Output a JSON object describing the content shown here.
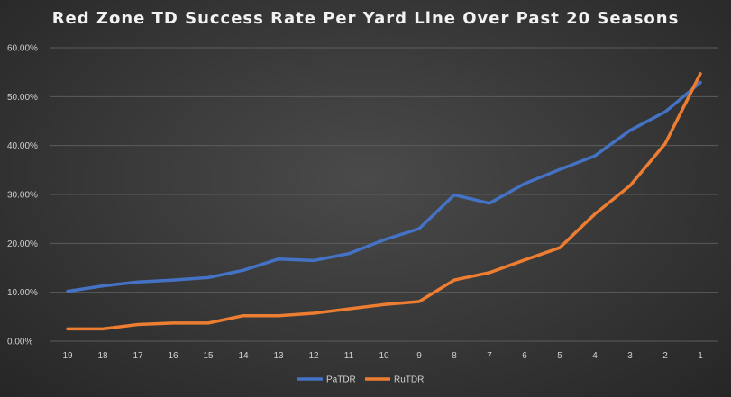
{
  "chart_data": {
    "type": "line",
    "title": "Red Zone TD Success Rate Per Yard Line Over Past 20 Seasons",
    "xlabel": "",
    "ylabel": "",
    "categories": [
      "19",
      "18",
      "17",
      "16",
      "15",
      "14",
      "13",
      "12",
      "11",
      "10",
      "9",
      "8",
      "7",
      "6",
      "5",
      "4",
      "3",
      "2",
      "1"
    ],
    "ylim": [
      0,
      60
    ],
    "y_ticks": [
      "0.00%",
      "10.00%",
      "20.00%",
      "30.00%",
      "40.00%",
      "50.00%",
      "60.00%"
    ],
    "grid": true,
    "legend_position": "bottom",
    "series": [
      {
        "name": "PaTDR",
        "color": "#4472C4",
        "values": [
          10.2,
          11.3,
          12.1,
          12.5,
          13.0,
          14.5,
          16.8,
          16.5,
          17.9,
          20.7,
          23.0,
          29.9,
          28.2,
          32.2,
          35.1,
          37.9,
          43.1,
          46.9,
          52.9
        ]
      },
      {
        "name": "RuTDR",
        "color": "#ED7D31",
        "values": [
          2.5,
          2.5,
          3.4,
          3.7,
          3.7,
          5.2,
          5.2,
          5.7,
          6.6,
          7.5,
          8.1,
          12.5,
          14.0,
          16.6,
          19.1,
          26.0,
          31.8,
          40.4,
          54.7
        ]
      }
    ]
  }
}
